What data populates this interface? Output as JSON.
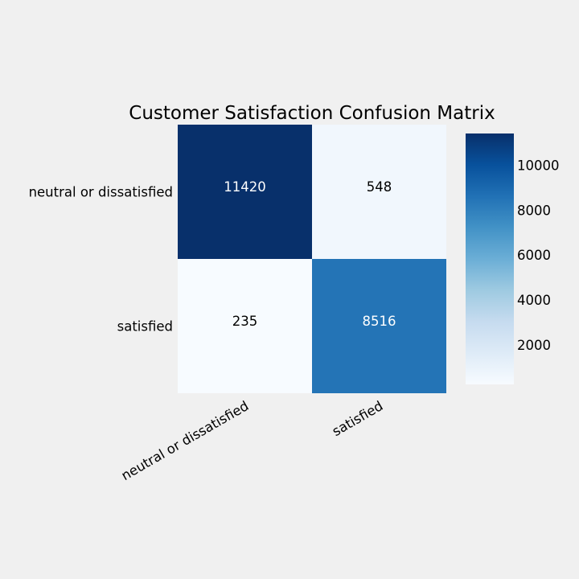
{
  "chart_data": {
    "type": "heatmap",
    "title": "Customer Satisfaction Confusion Matrix",
    "xlabel": "",
    "ylabel": "",
    "row_labels": [
      "neutral or dissatisfied",
      "satisfied"
    ],
    "col_labels": [
      "neutral or dissatisfied",
      "satisfied"
    ],
    "values": [
      [
        11420,
        548
      ],
      [
        235,
        8516
      ]
    ],
    "colormap": "Blues",
    "colorbar": {
      "range": [
        235,
        11420
      ],
      "ticks": [
        2000,
        4000,
        6000,
        8000,
        10000
      ]
    },
    "grid": false
  }
}
